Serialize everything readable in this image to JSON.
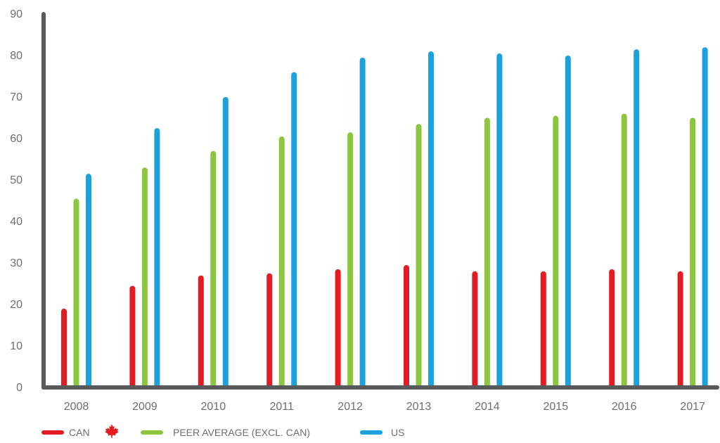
{
  "chart_data": {
    "type": "bar",
    "title": "",
    "xlabel": "",
    "ylabel": "",
    "ylim": [
      0,
      90
    ],
    "yticks": [
      0,
      10,
      20,
      30,
      40,
      50,
      60,
      70,
      80,
      90
    ],
    "categories": [
      "2008",
      "2009",
      "2010",
      "2011",
      "2012",
      "2013",
      "2014",
      "2015",
      "2016",
      "2017"
    ],
    "series": [
      {
        "name": "CAN",
        "color": "#e31b23",
        "values": [
          19,
          24.5,
          27,
          27.5,
          28.5,
          29.5,
          28,
          28,
          28.5,
          28
        ]
      },
      {
        "name": "PEER AVERAGE (EXCL. CAN)",
        "color": "#8cc63f",
        "values": [
          45.5,
          53,
          57,
          60.5,
          61.5,
          63.5,
          65,
          65.5,
          66,
          65
        ]
      },
      {
        "name": "US",
        "color": "#1ba1dc",
        "values": [
          51.5,
          62.5,
          70,
          76,
          79.5,
          81,
          80.5,
          80,
          81.5,
          82
        ]
      }
    ],
    "legend": {
      "placement": "bottom-left"
    },
    "grid": false
  },
  "legend_icons": {
    "CAN": "maple-leaf-icon"
  },
  "axis_color": "#58595b"
}
